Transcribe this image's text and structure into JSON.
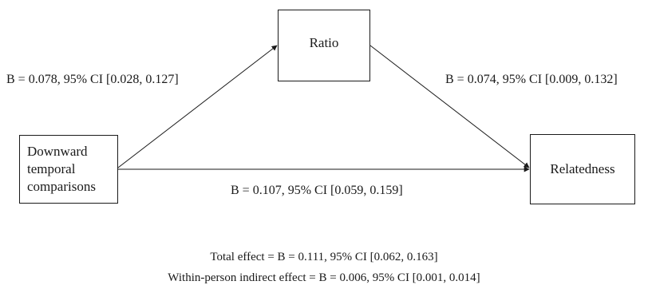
{
  "nodes": {
    "mediator": "Ratio",
    "predictor": "Downward\ntemporal\ncomparisons",
    "outcome": "Relatedness"
  },
  "paths": {
    "a": "B = 0.078, 95% CI [0.028, 0.127]",
    "b": "B = 0.074, 95% CI [0.009, 0.132]",
    "c_prime": "B = 0.107, 95% CI [0.059, 0.159]"
  },
  "effects": {
    "total": "Total effect = B = 0.111, 95% CI [0.062, 0.163]",
    "indirect": "Within-person indirect effect = B = 0.006, 95% CI [0.001, 0.014]"
  },
  "colors": {
    "stroke": "#1a1a1a",
    "background": "#ffffff"
  }
}
